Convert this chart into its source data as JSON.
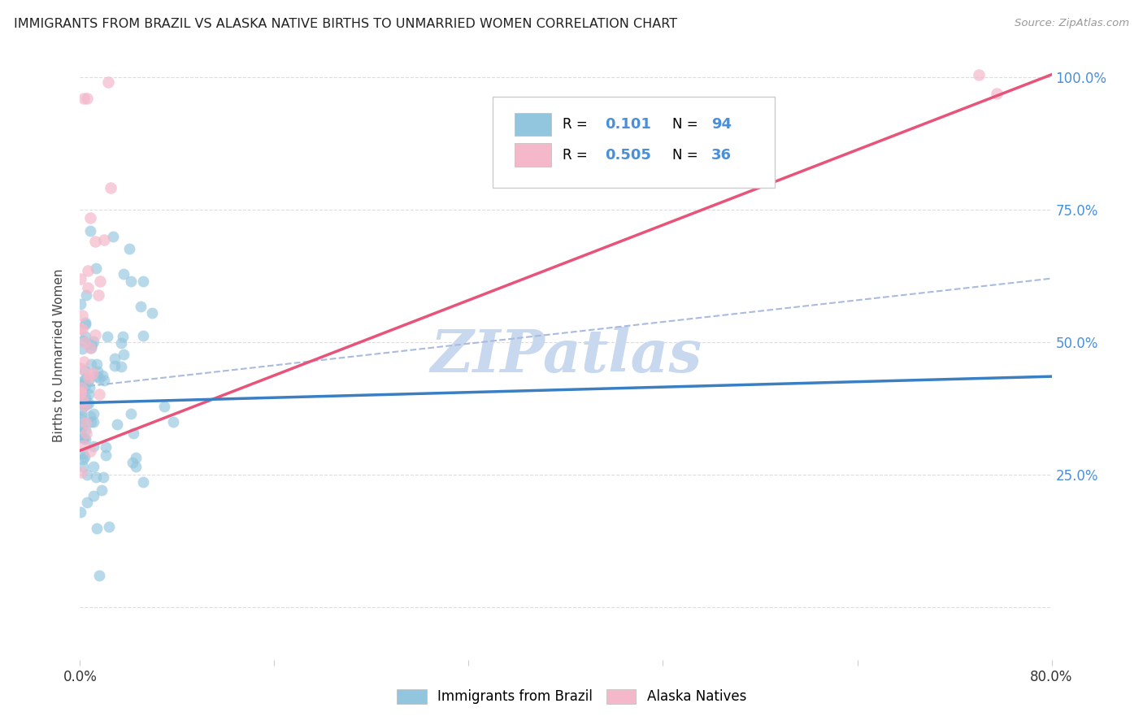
{
  "title": "IMMIGRANTS FROM BRAZIL VS ALASKA NATIVE BIRTHS TO UNMARRIED WOMEN CORRELATION CHART",
  "source": "Source: ZipAtlas.com",
  "ylabel": "Births to Unmarried Women",
  "xlim": [
    0.0,
    0.8
  ],
  "ylim": [
    -0.1,
    1.05
  ],
  "brazil_R": 0.101,
  "brazil_N": 94,
  "alaska_R": 0.505,
  "alaska_N": 36,
  "legend_label_brazil": "Immigrants from Brazil",
  "legend_label_alaska": "Alaska Natives",
  "brazil_color": "#92C5DE",
  "alaska_color": "#F4B8CA",
  "brazil_line_color": "#3A7FC1",
  "alaska_line_color": "#E8537A",
  "dash_line_color": "#AABBDD",
  "watermark_color": "#C8D8EE",
  "grid_color": "#DDDDDD",
  "title_color": "#222222",
  "source_color": "#999999",
  "ylabel_color": "#444444",
  "tick_label_color": "#4A90D9",
  "brazil_line_x0": 0.0,
  "brazil_line_x1": 0.8,
  "brazil_line_y0": 0.385,
  "brazil_line_y1": 0.435,
  "alaska_line_x0": 0.0,
  "alaska_line_x1": 0.8,
  "alaska_line_y0": 0.295,
  "alaska_line_y1": 1.005,
  "dash_line_x0": 0.0,
  "dash_line_x1": 0.8,
  "dash_line_y0": 0.415,
  "dash_line_y1": 0.62
}
